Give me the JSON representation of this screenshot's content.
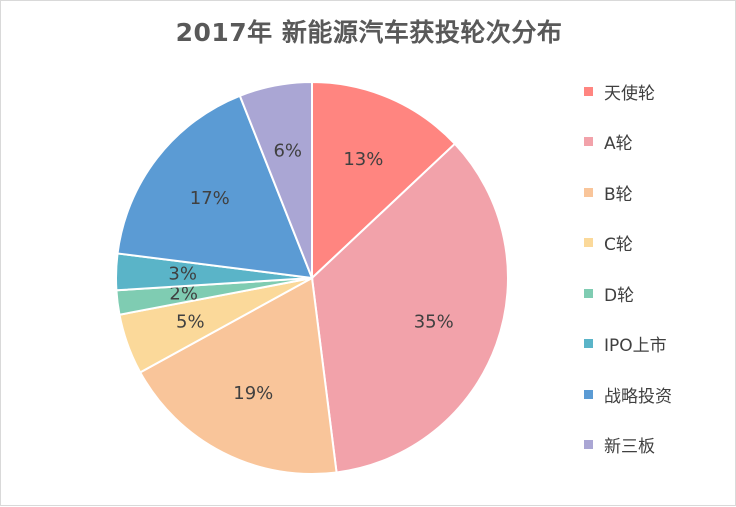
{
  "chart_data": {
    "type": "pie",
    "title": "2017年 新能源汽车获投轮次分布",
    "legend_position": "right",
    "slices": [
      {
        "label": "天使轮",
        "value": 13,
        "text": "13%",
        "color": "#ff8580"
      },
      {
        "label": "A轮",
        "value": 35,
        "text": "35%",
        "color": "#f2a2aa"
      },
      {
        "label": "B轮",
        "value": 19,
        "text": "19%",
        "color": "#f9c59a"
      },
      {
        "label": "C轮",
        "value": 5,
        "text": "5%",
        "color": "#fbd99a"
      },
      {
        "label": "D轮",
        "value": 2,
        "text": "2%",
        "color": "#7fccb2"
      },
      {
        "label": "IPO上市",
        "value": 3,
        "text": "3%",
        "color": "#5ab4c8"
      },
      {
        "label": "战略投资",
        "value": 17,
        "text": "17%",
        "color": "#5b9bd4"
      },
      {
        "label": "新三板",
        "value": 6,
        "text": "6%",
        "color": "#aaa6d4"
      }
    ]
  }
}
